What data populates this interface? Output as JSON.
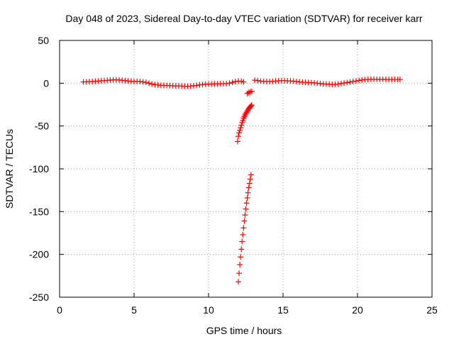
{
  "chart_data": {
    "type": "scatter",
    "title": "Day 048 of 2023, Sidereal Day-to-day VTEC variation (SDTVAR) for receiver karr",
    "xlabel": "GPS time / hours",
    "ylabel": "SDTVAR / TECUs",
    "xlim": [
      0,
      25
    ],
    "ylim": [
      -250,
      50
    ],
    "x_ticks": [
      0,
      5,
      10,
      15,
      20,
      25
    ],
    "y_ticks": [
      -250,
      -200,
      -150,
      -100,
      -50,
      0,
      50
    ],
    "x_tick_labels": [
      "0",
      "5",
      "10",
      "15",
      "20",
      "25"
    ],
    "y_tick_labels": [
      "-250",
      "-200",
      "-150",
      "-100",
      "-50",
      "0",
      "50"
    ],
    "grid": true,
    "marker": "plus",
    "color": "#ff0000",
    "series": [
      {
        "values_xy": [
          [
            1.6,
            1.5
          ],
          [
            1.8,
            1.6
          ],
          [
            2.0,
            1.8
          ],
          [
            2.2,
            2.0
          ],
          [
            2.4,
            2.2
          ],
          [
            2.6,
            2.5
          ],
          [
            2.8,
            2.8
          ],
          [
            3.0,
            3.0
          ],
          [
            3.2,
            3.3
          ],
          [
            3.4,
            3.6
          ],
          [
            3.6,
            3.9
          ],
          [
            3.8,
            4.0
          ],
          [
            4.0,
            3.8
          ],
          [
            4.2,
            3.4
          ],
          [
            4.4,
            3.0
          ],
          [
            4.6,
            2.6
          ],
          [
            4.8,
            2.3
          ],
          [
            5.0,
            2.0
          ],
          [
            5.2,
            2.2
          ],
          [
            5.4,
            2.0
          ],
          [
            5.6,
            1.5
          ],
          [
            5.8,
            1.0
          ],
          [
            6.0,
            0.0
          ],
          [
            6.2,
            -1.0
          ],
          [
            6.4,
            -1.6
          ],
          [
            6.6,
            -2.0
          ],
          [
            6.8,
            -2.4
          ],
          [
            7.0,
            -2.6
          ],
          [
            7.2,
            -2.6
          ],
          [
            7.4,
            -2.8
          ],
          [
            7.6,
            -3.0
          ],
          [
            7.8,
            -3.2
          ],
          [
            8.0,
            -3.2
          ],
          [
            8.2,
            -3.4
          ],
          [
            8.4,
            -3.6
          ],
          [
            8.6,
            -3.6
          ],
          [
            8.8,
            -3.4
          ],
          [
            9.0,
            -3.0
          ],
          [
            9.2,
            -2.6
          ],
          [
            9.4,
            -2.0
          ],
          [
            9.6,
            -1.6
          ],
          [
            9.8,
            -1.2
          ],
          [
            10.0,
            -1.0
          ],
          [
            10.2,
            -1.0
          ],
          [
            10.4,
            -0.8
          ],
          [
            10.6,
            -0.8
          ],
          [
            10.8,
            -0.6
          ],
          [
            11.0,
            -0.6
          ],
          [
            11.2,
            -0.4
          ],
          [
            11.4,
            0.0
          ],
          [
            11.6,
            1.0
          ],
          [
            11.8,
            2.0
          ],
          [
            12.0,
            2.5
          ],
          [
            12.2,
            2.2
          ],
          [
            12.35,
            1.5
          ],
          [
            12.6,
            -12.0
          ],
          [
            12.7,
            -11.0
          ],
          [
            12.8,
            -10.0
          ],
          [
            12.9,
            -9.5
          ],
          [
            11.95,
            -68.0
          ],
          [
            12.0,
            -62.0
          ],
          [
            12.05,
            -58.0
          ],
          [
            12.1,
            -55.0
          ],
          [
            12.15,
            -52.0
          ],
          [
            12.2,
            -49.0
          ],
          [
            12.25,
            -46.0
          ],
          [
            12.3,
            -43.5
          ],
          [
            12.35,
            -41.0
          ],
          [
            12.4,
            -39.0
          ],
          [
            12.45,
            -37.0
          ],
          [
            12.5,
            -35.5
          ],
          [
            12.55,
            -34.0
          ],
          [
            12.6,
            -32.5
          ],
          [
            12.65,
            -31.0
          ],
          [
            12.7,
            -29.8
          ],
          [
            12.75,
            -28.6
          ],
          [
            12.8,
            -27.5
          ],
          [
            12.85,
            -26.5
          ],
          [
            12.9,
            -25.5
          ],
          [
            12.0,
            -232.0
          ],
          [
            12.05,
            -222.0
          ],
          [
            12.1,
            -212.0
          ],
          [
            12.15,
            -203.0
          ],
          [
            12.2,
            -194.0
          ],
          [
            12.25,
            -185.0
          ],
          [
            12.3,
            -177.0
          ],
          [
            12.35,
            -169.0
          ],
          [
            12.4,
            -161.0
          ],
          [
            12.45,
            -154.0
          ],
          [
            12.5,
            -147.0
          ],
          [
            12.55,
            -140.0
          ],
          [
            12.6,
            -134.0
          ],
          [
            12.65,
            -128.0
          ],
          [
            12.7,
            -122.0
          ],
          [
            12.75,
            -117.0
          ],
          [
            12.8,
            -112.0
          ],
          [
            12.85,
            -107.0
          ],
          [
            13.1,
            3.5
          ],
          [
            13.3,
            3.0
          ],
          [
            13.5,
            2.5
          ],
          [
            13.7,
            2.2
          ],
          [
            13.9,
            2.0
          ],
          [
            14.1,
            2.0
          ],
          [
            14.3,
            2.2
          ],
          [
            14.5,
            2.5
          ],
          [
            14.7,
            2.8
          ],
          [
            14.9,
            3.0
          ],
          [
            15.1,
            3.0
          ],
          [
            15.3,
            2.8
          ],
          [
            15.5,
            2.6
          ],
          [
            15.7,
            2.4
          ],
          [
            15.9,
            2.0
          ],
          [
            16.1,
            1.5
          ],
          [
            16.3,
            1.2
          ],
          [
            16.5,
            1.0
          ],
          [
            16.7,
            0.8
          ],
          [
            16.9,
            0.6
          ],
          [
            17.1,
            0.4
          ],
          [
            17.3,
            0.0
          ],
          [
            17.5,
            -0.4
          ],
          [
            17.7,
            -0.8
          ],
          [
            17.9,
            -1.0
          ],
          [
            18.1,
            -1.2
          ],
          [
            18.3,
            -1.4
          ],
          [
            18.5,
            -1.2
          ],
          [
            18.7,
            -1.0
          ],
          [
            18.9,
            -0.4
          ],
          [
            19.1,
            0.2
          ],
          [
            19.3,
            0.8
          ],
          [
            19.5,
            1.4
          ],
          [
            19.7,
            2.0
          ],
          [
            19.9,
            2.6
          ],
          [
            20.1,
            3.2
          ],
          [
            20.3,
            3.8
          ],
          [
            20.5,
            4.2
          ],
          [
            20.7,
            4.4
          ],
          [
            20.9,
            4.6
          ],
          [
            21.1,
            4.6
          ],
          [
            21.3,
            4.6
          ],
          [
            21.5,
            4.6
          ],
          [
            21.7,
            4.6
          ],
          [
            21.9,
            4.4
          ],
          [
            22.1,
            4.4
          ],
          [
            22.3,
            4.4
          ],
          [
            22.5,
            4.4
          ],
          [
            22.7,
            4.4
          ],
          [
            22.85,
            4.4
          ]
        ]
      }
    ]
  }
}
